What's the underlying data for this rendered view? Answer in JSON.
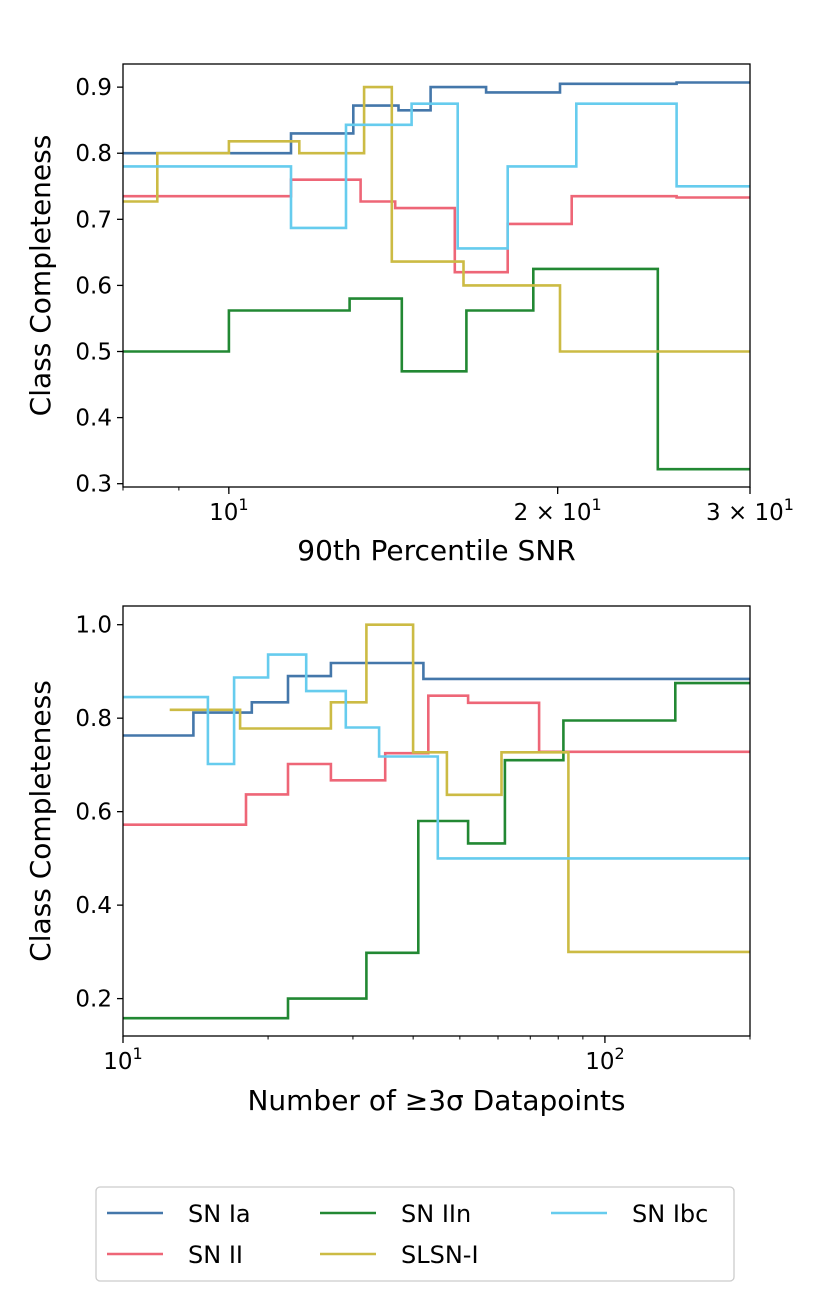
{
  "colors": {
    "SN Ia": "#4477aa",
    "SN II": "#ee6677",
    "SN IIn": "#228833",
    "SLSN-I": "#ccbb44",
    "SN Ibc": "#66ccee"
  },
  "legend": {
    "entries": [
      "SN Ia",
      "SN II",
      "SN IIn",
      "SLSN-I",
      "SN Ibc"
    ]
  },
  "chart_data": [
    {
      "type": "line",
      "step": true,
      "xscale": "log",
      "xlabel": "90th Percentile SNR",
      "ylabel": "Class Completeness",
      "xlim": [
        8.0,
        30.0
      ],
      "ylim": [
        0.295,
        0.935
      ],
      "x_ticks": [
        {
          "value": 10,
          "base": "10",
          "exp": "1"
        },
        {
          "value": 20,
          "base": "2 × 10",
          "exp": "1"
        },
        {
          "value": 30,
          "base": "3 × 10",
          "exp": "1"
        }
      ],
      "y_ticks": [
        {
          "value": 0.3,
          "label": "0.3"
        },
        {
          "value": 0.4,
          "label": "0.4"
        },
        {
          "value": 0.5,
          "label": "0.5"
        },
        {
          "value": 0.6,
          "label": "0.6"
        },
        {
          "value": 0.7,
          "label": "0.7"
        },
        {
          "value": 0.8,
          "label": "0.8"
        },
        {
          "value": 0.9,
          "label": "0.9"
        }
      ],
      "series": [
        {
          "name": "SN Ia",
          "edges": [
            8.0,
            11.4,
            13.0,
            14.3,
            15.3,
            17.2,
            20.1,
            25.7,
            30.0
          ],
          "values": [
            0.8,
            0.83,
            0.872,
            0.865,
            0.9,
            0.892,
            0.905,
            0.907
          ]
        },
        {
          "name": "SN II",
          "edges": [
            8.0,
            11.4,
            13.2,
            14.2,
            16.1,
            18.0,
            20.6,
            25.7,
            30.0
          ],
          "values": [
            0.735,
            0.76,
            0.727,
            0.717,
            0.62,
            0.693,
            0.735,
            0.733
          ]
        },
        {
          "name": "SN IIn",
          "edges": [
            8.0,
            10.0,
            12.9,
            14.4,
            16.5,
            19.0,
            24.7,
            30.0
          ],
          "values": [
            0.5,
            0.562,
            0.58,
            0.47,
            0.562,
            0.625,
            0.322
          ]
        },
        {
          "name": "SLSN-I",
          "edges": [
            8.0,
            8.6,
            10.0,
            11.6,
            13.3,
            14.1,
            16.4,
            20.1,
            30.0
          ],
          "values": [
            0.727,
            0.8,
            0.818,
            0.8,
            0.9,
            0.636,
            0.6,
            0.5
          ]
        },
        {
          "name": "SN Ibc",
          "edges": [
            8.0,
            11.4,
            12.8,
            14.7,
            16.2,
            18.0,
            20.8,
            25.7,
            30.0
          ],
          "values": [
            0.78,
            0.687,
            0.843,
            0.875,
            0.656,
            0.78,
            0.875,
            0.75
          ]
        }
      ]
    },
    {
      "type": "line",
      "step": true,
      "xscale": "log",
      "xlabel": "Number of ≥3σ Datapoints",
      "ylabel": "Class Completeness",
      "xlim": [
        10.0,
        200.0
      ],
      "ylim": [
        0.12,
        1.04
      ],
      "x_ticks": [
        {
          "value": 10,
          "base": "10",
          "exp": "1"
        },
        {
          "value": 100,
          "base": "10",
          "exp": "2"
        }
      ],
      "y_ticks": [
        {
          "value": 0.2,
          "label": "0.2"
        },
        {
          "value": 0.4,
          "label": "0.4"
        },
        {
          "value": 0.6,
          "label": "0.6"
        },
        {
          "value": 0.8,
          "label": "0.8"
        },
        {
          "value": 1.0,
          "label": "1.0"
        }
      ],
      "series": [
        {
          "name": "SN Ia",
          "edges": [
            10.0,
            14.0,
            18.5,
            22.0,
            27.0,
            42.0,
            200.0
          ],
          "values": [
            0.763,
            0.812,
            0.834,
            0.89,
            0.918,
            0.884
          ]
        },
        {
          "name": "SN II",
          "edges": [
            10.0,
            18.0,
            22.0,
            27.0,
            35.0,
            43.0,
            52.0,
            73.0,
            200.0
          ],
          "values": [
            0.572,
            0.637,
            0.702,
            0.667,
            0.725,
            0.848,
            0.833,
            0.728
          ]
        },
        {
          "name": "SN IIn",
          "edges": [
            10.0,
            22.0,
            32.0,
            41.0,
            52.0,
            62.0,
            82.0,
            140.0,
            200.0
          ],
          "values": [
            0.158,
            0.2,
            0.298,
            0.58,
            0.532,
            0.71,
            0.795,
            0.875
          ]
        },
        {
          "name": "SLSN-I",
          "edges": [
            12.5,
            17.5,
            27.0,
            32.0,
            40.0,
            47.0,
            61.0,
            84.0,
            200.0
          ],
          "values": [
            0.818,
            0.778,
            0.834,
            1.0,
            0.727,
            0.636,
            0.727,
            0.3
          ]
        },
        {
          "name": "SN Ibc",
          "edges": [
            10.0,
            15.0,
            17.0,
            20.0,
            24.0,
            29.0,
            34.0,
            45.0,
            200.0
          ],
          "values": [
            0.845,
            0.702,
            0.887,
            0.936,
            0.858,
            0.78,
            0.718,
            0.5
          ]
        }
      ]
    }
  ]
}
